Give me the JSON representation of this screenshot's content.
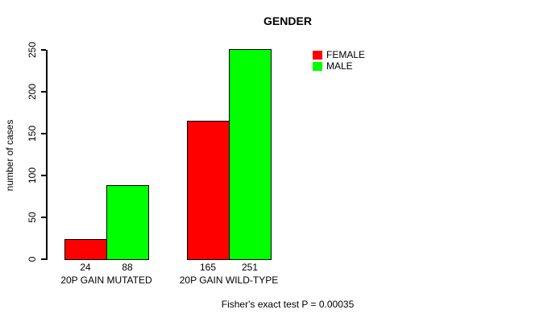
{
  "chart_data": {
    "type": "bar",
    "title": "GENDER",
    "ylabel": "number of cases",
    "xlabel": "",
    "categories": [
      "20P GAIN MUTATED",
      "20P GAIN WILD-TYPE"
    ],
    "series": [
      {
        "name": "FEMALE",
        "color": "#ff0000",
        "values": [
          24,
          165
        ]
      },
      {
        "name": "MALE",
        "color": "#00ff00",
        "values": [
          88,
          251
        ]
      }
    ],
    "value_labels": [
      "24",
      "88",
      "165",
      "251"
    ],
    "yticks": [
      0,
      50,
      100,
      150,
      200,
      250
    ],
    "ylim": [
      0,
      250
    ],
    "grid": false,
    "legend": {
      "position": "top-right",
      "entries": [
        "FEMALE",
        "MALE"
      ]
    },
    "annotation": "Fisher's exact test P = 0.00035",
    "axis_color": "#000000",
    "background_color": "#ffffff"
  }
}
